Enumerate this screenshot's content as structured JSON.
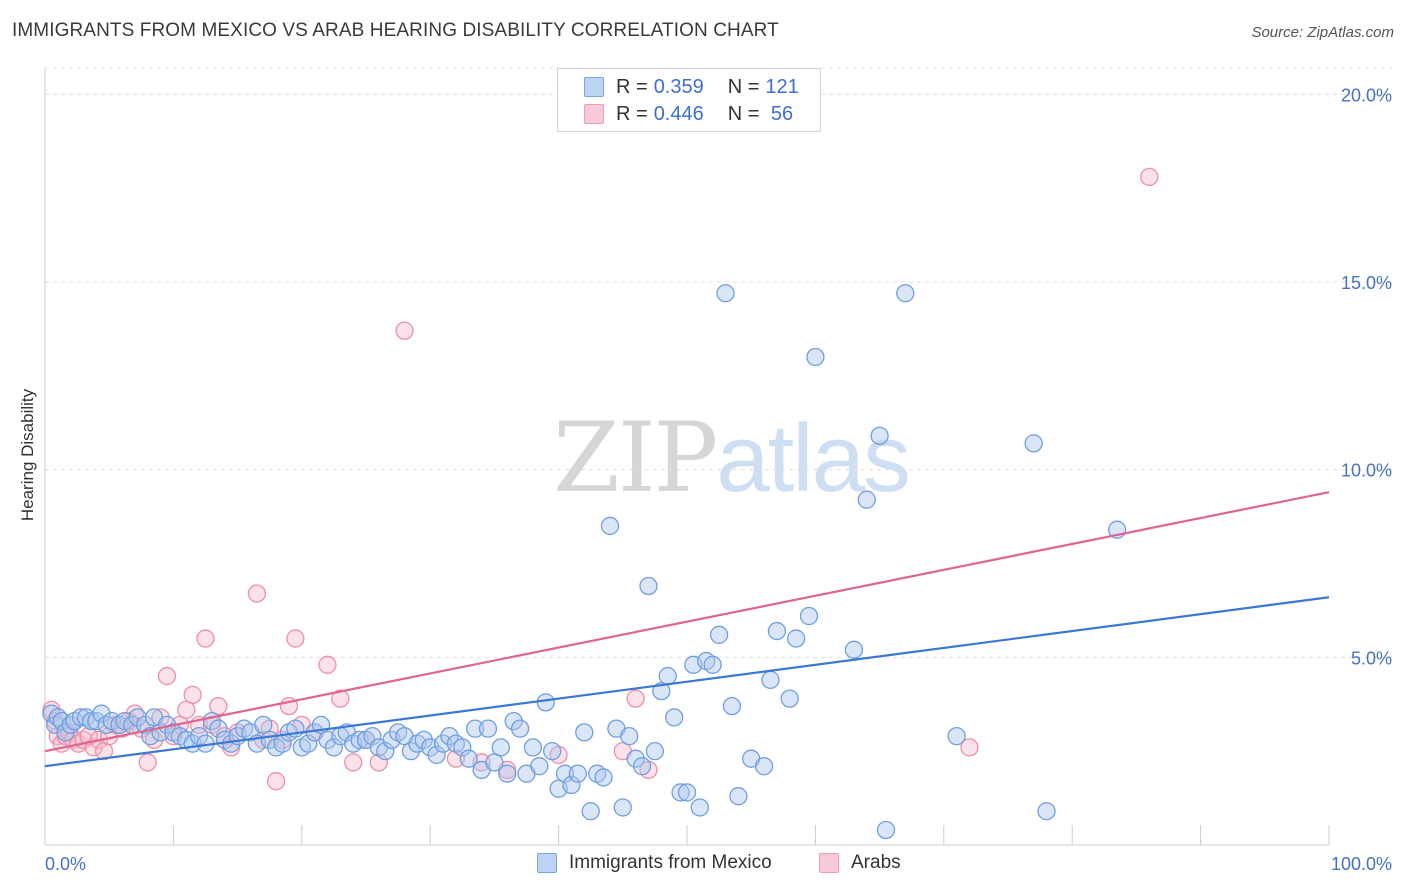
{
  "header": {
    "title": "IMMIGRANTS FROM MEXICO VS ARAB HEARING DISABILITY CORRELATION CHART",
    "source": "Source: ZipAtlas.com"
  },
  "watermark": {
    "zip": "ZIP",
    "atlas": "atlas"
  },
  "legend": {
    "rows": [
      {
        "r_label": "R = ",
        "r_value": "0.359",
        "n_label": "N = ",
        "n_value": "121"
      },
      {
        "r_label": "R = ",
        "r_value": "0.446",
        "n_label": "N = ",
        "n_value": " 56"
      }
    ]
  },
  "bottom_legend": {
    "mexico": "Immigrants from Mexico",
    "arabs": "Arabs"
  },
  "colors": {
    "mexico_fill": "#aec7ee",
    "mexico_stroke": "#6f9fe0",
    "mexico_line": "#3a78d4",
    "arabs_fill": "#f6bccd",
    "arabs_stroke": "#ec8fab",
    "arabs_line": "#e0648f",
    "tick_text": "#4472c4"
  },
  "chart_data": {
    "type": "scatter",
    "title": "IMMIGRANTS FROM MEXICO VS ARAB HEARING DISABILITY CORRELATION CHART",
    "xlabel": "",
    "ylabel": "Hearing Disability",
    "xlim": [
      0,
      100
    ],
    "ylim": [
      0,
      20.7
    ],
    "x_ticks": [
      "0.0%",
      "100.0%"
    ],
    "y_ticks": [
      {
        "value": 5,
        "label": "5.0%"
      },
      {
        "value": 10,
        "label": "10.0%"
      },
      {
        "value": 15,
        "label": "15.0%"
      },
      {
        "value": 20,
        "label": "20.0%"
      }
    ],
    "grid": "horizontal-dashed",
    "legend_position": "top-center",
    "series": [
      {
        "name": "Immigrants from Mexico",
        "trend": {
          "x": [
            0,
            100
          ],
          "y": [
            2.1,
            6.6
          ]
        },
        "points": [
          [
            0.5,
            3.5
          ],
          [
            0.8,
            3.2
          ],
          [
            1.0,
            3.4
          ],
          [
            1.3,
            3.3
          ],
          [
            1.6,
            3.0
          ],
          [
            2.0,
            3.2
          ],
          [
            2.3,
            3.3
          ],
          [
            2.8,
            3.4
          ],
          [
            3.2,
            3.4
          ],
          [
            3.6,
            3.3
          ],
          [
            4.0,
            3.3
          ],
          [
            4.4,
            3.5
          ],
          [
            4.8,
            3.2
          ],
          [
            5.2,
            3.3
          ],
          [
            5.8,
            3.2
          ],
          [
            6.2,
            3.3
          ],
          [
            6.8,
            3.2
          ],
          [
            7.2,
            3.4
          ],
          [
            7.8,
            3.2
          ],
          [
            8.2,
            2.9
          ],
          [
            8.5,
            3.4
          ],
          [
            9.0,
            3.0
          ],
          [
            9.5,
            3.2
          ],
          [
            10.0,
            3.0
          ],
          [
            10.5,
            2.9
          ],
          [
            11.0,
            2.8
          ],
          [
            11.5,
            2.7
          ],
          [
            12.0,
            2.9
          ],
          [
            12.5,
            2.7
          ],
          [
            13.0,
            3.3
          ],
          [
            13.5,
            3.1
          ],
          [
            14.0,
            2.8
          ],
          [
            14.5,
            2.7
          ],
          [
            15.0,
            2.9
          ],
          [
            15.5,
            3.1
          ],
          [
            16.0,
            3.0
          ],
          [
            16.5,
            2.7
          ],
          [
            17.0,
            3.2
          ],
          [
            17.5,
            2.8
          ],
          [
            18.0,
            2.6
          ],
          [
            18.5,
            2.7
          ],
          [
            19.0,
            3.0
          ],
          [
            19.5,
            3.1
          ],
          [
            20.0,
            2.6
          ],
          [
            20.5,
            2.7
          ],
          [
            21.0,
            3.0
          ],
          [
            21.5,
            3.2
          ],
          [
            22.0,
            2.8
          ],
          [
            22.5,
            2.6
          ],
          [
            23.0,
            2.9
          ],
          [
            23.5,
            3.0
          ],
          [
            24.0,
            2.7
          ],
          [
            24.5,
            2.8
          ],
          [
            25.0,
            2.8
          ],
          [
            25.5,
            2.9
          ],
          [
            26.0,
            2.6
          ],
          [
            26.5,
            2.5
          ],
          [
            27.0,
            2.8
          ],
          [
            27.5,
            3.0
          ],
          [
            28.0,
            2.9
          ],
          [
            28.5,
            2.5
          ],
          [
            29.0,
            2.7
          ],
          [
            29.5,
            2.8
          ],
          [
            30.0,
            2.6
          ],
          [
            30.5,
            2.4
          ],
          [
            31.0,
            2.7
          ],
          [
            31.5,
            2.9
          ],
          [
            32.0,
            2.7
          ],
          [
            32.5,
            2.6
          ],
          [
            33.0,
            2.3
          ],
          [
            33.5,
            3.1
          ],
          [
            34.0,
            2.0
          ],
          [
            34.5,
            3.1
          ],
          [
            35.0,
            2.2
          ],
          [
            35.5,
            2.6
          ],
          [
            36.0,
            1.9
          ],
          [
            36.5,
            3.3
          ],
          [
            37.0,
            3.1
          ],
          [
            37.5,
            1.9
          ],
          [
            38.0,
            2.6
          ],
          [
            38.5,
            2.1
          ],
          [
            39.0,
            3.8
          ],
          [
            39.5,
            2.5
          ],
          [
            40.0,
            1.5
          ],
          [
            40.5,
            1.9
          ],
          [
            41.0,
            1.6
          ],
          [
            41.5,
            1.9
          ],
          [
            42.0,
            3.0
          ],
          [
            42.5,
            0.9
          ],
          [
            43.0,
            1.9
          ],
          [
            43.5,
            1.8
          ],
          [
            44.0,
            8.5
          ],
          [
            44.5,
            3.1
          ],
          [
            45.0,
            1.0
          ],
          [
            45.5,
            2.9
          ],
          [
            46.0,
            2.3
          ],
          [
            46.5,
            2.1
          ],
          [
            47.0,
            6.9
          ],
          [
            47.5,
            2.5
          ],
          [
            48.0,
            4.1
          ],
          [
            48.5,
            4.5
          ],
          [
            49.0,
            3.4
          ],
          [
            49.5,
            1.4
          ],
          [
            50.0,
            1.4
          ],
          [
            50.5,
            4.8
          ],
          [
            51.0,
            1.0
          ],
          [
            51.5,
            4.9
          ],
          [
            52.0,
            4.8
          ],
          [
            52.5,
            5.6
          ],
          [
            53.0,
            14.7
          ],
          [
            53.5,
            3.7
          ],
          [
            54.0,
            1.3
          ],
          [
            55.0,
            2.3
          ],
          [
            56.0,
            2.1
          ],
          [
            56.5,
            4.4
          ],
          [
            57.0,
            5.7
          ],
          [
            58.0,
            3.9
          ],
          [
            58.5,
            5.5
          ],
          [
            59.5,
            6.1
          ],
          [
            60.0,
            13.0
          ],
          [
            63.0,
            5.2
          ],
          [
            64.0,
            9.2
          ],
          [
            65.0,
            10.9
          ],
          [
            65.5,
            0.4
          ],
          [
            67.0,
            14.7
          ],
          [
            71.0,
            2.9
          ],
          [
            77.0,
            10.7
          ],
          [
            78.0,
            0.9
          ],
          [
            83.5,
            8.4
          ]
        ]
      },
      {
        "name": "Arabs",
        "trend": {
          "x": [
            0,
            100
          ],
          "y": [
            2.5,
            9.4
          ]
        },
        "points": [
          [
            0.5,
            3.6
          ],
          [
            0.8,
            3.3
          ],
          [
            1.0,
            2.9
          ],
          [
            1.3,
            2.7
          ],
          [
            1.6,
            2.9
          ],
          [
            1.9,
            3.0
          ],
          [
            2.2,
            2.8
          ],
          [
            2.6,
            2.7
          ],
          [
            3.0,
            2.8
          ],
          [
            3.4,
            2.9
          ],
          [
            3.8,
            2.6
          ],
          [
            4.2,
            2.8
          ],
          [
            4.6,
            2.5
          ],
          [
            5.0,
            2.9
          ],
          [
            5.5,
            3.2
          ],
          [
            6.0,
            3.1
          ],
          [
            6.5,
            3.3
          ],
          [
            7.0,
            3.5
          ],
          [
            7.5,
            3.1
          ],
          [
            8.0,
            2.2
          ],
          [
            8.5,
            2.8
          ],
          [
            9.0,
            3.4
          ],
          [
            9.5,
            4.5
          ],
          [
            10.0,
            2.9
          ],
          [
            10.5,
            3.2
          ],
          [
            11.0,
            3.6
          ],
          [
            11.5,
            4.0
          ],
          [
            12.0,
            3.2
          ],
          [
            12.5,
            5.5
          ],
          [
            13.0,
            3.2
          ],
          [
            13.5,
            3.7
          ],
          [
            14.0,
            2.9
          ],
          [
            14.5,
            2.6
          ],
          [
            15.0,
            3.0
          ],
          [
            16.5,
            6.7
          ],
          [
            17.0,
            2.8
          ],
          [
            17.5,
            3.1
          ],
          [
            18.0,
            1.7
          ],
          [
            18.5,
            2.8
          ],
          [
            19.0,
            3.7
          ],
          [
            19.5,
            5.5
          ],
          [
            20.0,
            3.2
          ],
          [
            21.0,
            3.0
          ],
          [
            22.0,
            4.8
          ],
          [
            23.0,
            3.9
          ],
          [
            24.0,
            2.2
          ],
          [
            25.0,
            2.8
          ],
          [
            26.0,
            2.2
          ],
          [
            28.0,
            13.7
          ],
          [
            32.0,
            2.3
          ],
          [
            34.0,
            2.2
          ],
          [
            36.0,
            2.0
          ],
          [
            40.0,
            2.4
          ],
          [
            45.0,
            2.5
          ],
          [
            46.0,
            3.9
          ],
          [
            47.0,
            2.0
          ],
          [
            72.0,
            2.6
          ],
          [
            86.0,
            17.8
          ]
        ]
      }
    ]
  }
}
